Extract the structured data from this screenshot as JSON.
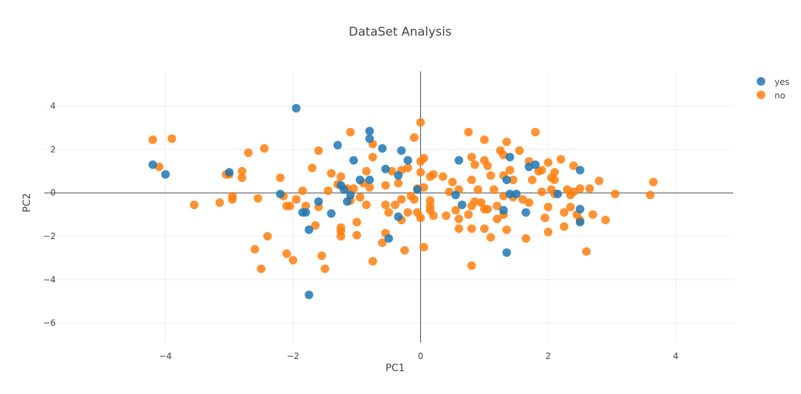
{
  "chart_data": {
    "type": "scatter",
    "title": "DataSet Analysis",
    "xlabel": "PC1",
    "ylabel": "PC2",
    "xlim": [
      -5.9,
      4.9
    ],
    "ylim": [
      -6.9,
      5.6
    ],
    "x_ticks": [
      -4,
      -2,
      0,
      2,
      4
    ],
    "y_ticks": [
      -6,
      -4,
      -2,
      0,
      2,
      4
    ],
    "grid": true,
    "zero_lines": true,
    "legend_position": "top-right",
    "series": [
      {
        "name": "yes",
        "color": "#1f77b4",
        "points": [
          [
            -4.2,
            1.3
          ],
          [
            -4.0,
            0.85
          ],
          [
            -3.0,
            0.95
          ],
          [
            -2.2,
            -0.05
          ],
          [
            -1.95,
            3.9
          ],
          [
            -1.8,
            -0.9
          ],
          [
            -1.75,
            -1.7
          ],
          [
            -1.75,
            -4.7
          ],
          [
            -1.6,
            -0.4
          ],
          [
            -1.4,
            -0.95
          ],
          [
            -1.3,
            2.2
          ],
          [
            -1.25,
            0.35
          ],
          [
            -1.2,
            0.15
          ],
          [
            -1.1,
            -0.1
          ],
          [
            -1.05,
            1.5
          ],
          [
            -0.95,
            0.6
          ],
          [
            -0.8,
            2.85
          ],
          [
            -0.8,
            2.5
          ],
          [
            -0.8,
            0.6
          ],
          [
            -0.6,
            2.05
          ],
          [
            -0.55,
            1.1
          ],
          [
            -0.5,
            -2.1
          ],
          [
            -0.35,
            0.8
          ],
          [
            -0.3,
            1.95
          ],
          [
            -0.35,
            -1.1
          ],
          [
            -0.2,
            1.5
          ],
          [
            -0.05,
            0.15
          ],
          [
            -1.15,
            -0.4
          ],
          [
            -1.85,
            -0.9
          ],
          [
            0.6,
            1.5
          ],
          [
            0.55,
            -0.1
          ],
          [
            0.65,
            -0.55
          ],
          [
            1.3,
            -0.8
          ],
          [
            1.35,
            0.6
          ],
          [
            1.4,
            1.65
          ],
          [
            1.4,
            -0.05
          ],
          [
            1.5,
            -0.05
          ],
          [
            1.35,
            -2.75
          ],
          [
            1.65,
            -0.9
          ],
          [
            1.7,
            1.2
          ],
          [
            1.8,
            1.3
          ],
          [
            2.15,
            -0.05
          ],
          [
            2.5,
            -0.75
          ],
          [
            2.5,
            -1.35
          ],
          [
            2.5,
            1.05
          ]
        ]
      },
      {
        "name": "no",
        "color": "#ff7f0e",
        "points": [
          [
            -4.2,
            2.45
          ],
          [
            -4.1,
            1.2
          ],
          [
            -3.9,
            2.5
          ],
          [
            -3.55,
            -0.55
          ],
          [
            -3.15,
            -0.45
          ],
          [
            -3.05,
            0.85
          ],
          [
            -3.0,
            0.85
          ],
          [
            -2.95,
            -0.15
          ],
          [
            -2.95,
            -0.3
          ],
          [
            -2.8,
            1.0
          ],
          [
            -2.8,
            0.7
          ],
          [
            -2.7,
            1.85
          ],
          [
            -2.6,
            -2.6
          ],
          [
            -2.55,
            -0.25
          ],
          [
            -2.45,
            2.05
          ],
          [
            -2.4,
            -2.0
          ],
          [
            -2.5,
            -3.5
          ],
          [
            -2.2,
            0.7
          ],
          [
            -2.15,
            -0.15
          ],
          [
            -2.1,
            -0.6
          ],
          [
            -2.1,
            -2.8
          ],
          [
            -2.05,
            -0.6
          ],
          [
            -2.0,
            -3.1
          ],
          [
            -1.95,
            -0.3
          ],
          [
            -1.85,
            0.1
          ],
          [
            -1.8,
            -0.6
          ],
          [
            -1.7,
            1.15
          ],
          [
            -1.65,
            -1.5
          ],
          [
            -1.6,
            1.95
          ],
          [
            -1.6,
            -0.65
          ],
          [
            -1.55,
            -2.9
          ],
          [
            -1.5,
            -3.5
          ],
          [
            -1.45,
            0.1
          ],
          [
            -1.4,
            0.9
          ],
          [
            -1.3,
            0.4
          ],
          [
            -1.25,
            -1.6
          ],
          [
            -1.25,
            -1.75
          ],
          [
            -1.25,
            -2.0
          ],
          [
            -1.25,
            0.75
          ],
          [
            -1.15,
            0.2
          ],
          [
            -1.1,
            -0.35
          ],
          [
            -1.1,
            2.8
          ],
          [
            -1.05,
            0.2
          ],
          [
            -1.0,
            -1.35
          ],
          [
            -1.0,
            -1.95
          ],
          [
            -0.95,
            -0.2
          ],
          [
            -0.9,
            0.45
          ],
          [
            -0.85,
            1.0
          ],
          [
            -0.85,
            -0.55
          ],
          [
            -0.8,
            0.25
          ],
          [
            -0.75,
            2.25
          ],
          [
            -0.75,
            1.65
          ],
          [
            -0.75,
            -3.15
          ],
          [
            -0.6,
            -2.3
          ],
          [
            -0.55,
            -1.85
          ],
          [
            -0.55,
            -0.55
          ],
          [
            -0.55,
            0.35
          ],
          [
            -0.5,
            -0.9
          ],
          [
            -0.45,
            1.0
          ],
          [
            -0.4,
            -0.55
          ],
          [
            -0.35,
            0.45
          ],
          [
            -0.3,
            1.05
          ],
          [
            -0.3,
            -0.3
          ],
          [
            -0.3,
            -1.25
          ],
          [
            -0.25,
            -2.65
          ],
          [
            -0.2,
            -0.9
          ],
          [
            -0.2,
            1.15
          ],
          [
            -0.15,
            -0.15
          ],
          [
            -0.1,
            2.55
          ],
          [
            -0.1,
            -0.3
          ],
          [
            -0.05,
            0.2
          ],
          [
            -0.05,
            -0.9
          ],
          [
            0.0,
            3.25
          ],
          [
            0.0,
            1.45
          ],
          [
            0.0,
            0.95
          ],
          [
            0.0,
            -1.15
          ],
          [
            0.05,
            0.25
          ],
          [
            0.05,
            1.6
          ],
          [
            0.05,
            -2.5
          ],
          [
            0.15,
            0.75
          ],
          [
            0.15,
            -0.35
          ],
          [
            0.15,
            -0.6
          ],
          [
            0.15,
            -0.8
          ],
          [
            0.2,
            -1.05
          ],
          [
            0.2,
            0.85
          ],
          [
            0.35,
            0.75
          ],
          [
            0.4,
            -1.05
          ],
          [
            0.45,
            0.05
          ],
          [
            0.5,
            0.5
          ],
          [
            0.55,
            -0.8
          ],
          [
            0.6,
            0.15
          ],
          [
            0.6,
            -1.2
          ],
          [
            0.6,
            -1.65
          ],
          [
            0.75,
            2.8
          ],
          [
            0.75,
            -1.0
          ],
          [
            0.8,
            0.6
          ],
          [
            0.8,
            1.65
          ],
          [
            0.8,
            -0.6
          ],
          [
            0.85,
            -0.4
          ],
          [
            0.8,
            -1.65
          ],
          [
            0.8,
            -3.35
          ],
          [
            0.85,
            1.3
          ],
          [
            0.9,
            0.15
          ],
          [
            0.95,
            -0.45
          ],
          [
            1.0,
            1.5
          ],
          [
            1.0,
            2.45
          ],
          [
            1.0,
            -0.75
          ],
          [
            1.0,
            -1.65
          ],
          [
            1.05,
            -0.75
          ],
          [
            1.05,
            1.25
          ],
          [
            1.1,
            -2.05
          ],
          [
            1.1,
            0.8
          ],
          [
            1.15,
            0.15
          ],
          [
            1.2,
            -0.6
          ],
          [
            1.2,
            -1.2
          ],
          [
            1.25,
            1.95
          ],
          [
            1.3,
            1.75
          ],
          [
            1.3,
            0.8
          ],
          [
            1.3,
            -0.15
          ],
          [
            1.3,
            -1.0
          ],
          [
            1.35,
            2.35
          ],
          [
            1.35,
            -1.7
          ],
          [
            1.4,
            1.05
          ],
          [
            1.45,
            0.6
          ],
          [
            1.45,
            -0.2
          ],
          [
            1.55,
            1.95
          ],
          [
            1.6,
            -0.3
          ],
          [
            1.65,
            -2.1
          ],
          [
            1.7,
            1.45
          ],
          [
            1.75,
            0.6
          ],
          [
            1.7,
            -0.45
          ],
          [
            1.8,
            2.8
          ],
          [
            1.85,
            1.0
          ],
          [
            1.9,
            1.05
          ],
          [
            1.9,
            0.05
          ],
          [
            1.95,
            -1.15
          ],
          [
            2.0,
            -0.65
          ],
          [
            2.0,
            -1.8
          ],
          [
            2.0,
            1.4
          ],
          [
            2.05,
            0.7
          ],
          [
            2.05,
            0.15
          ],
          [
            2.1,
            0.95
          ],
          [
            2.1,
            0.6
          ],
          [
            2.1,
            -0.05
          ],
          [
            2.2,
            1.55
          ],
          [
            2.25,
            -0.9
          ],
          [
            2.25,
            -1.55
          ],
          [
            2.3,
            0.15
          ],
          [
            2.35,
            -0.1
          ],
          [
            2.35,
            -0.65
          ],
          [
            2.4,
            1.25
          ],
          [
            2.4,
            0.05
          ],
          [
            2.45,
            -1.0
          ],
          [
            2.5,
            0.2
          ],
          [
            2.5,
            -1.25
          ],
          [
            2.6,
            -2.7
          ],
          [
            2.65,
            0.2
          ],
          [
            2.7,
            -1.0
          ],
          [
            2.8,
            0.55
          ],
          [
            2.9,
            -1.25
          ],
          [
            3.05,
            -0.05
          ],
          [
            3.6,
            -0.1
          ],
          [
            3.65,
            0.5
          ]
        ]
      }
    ]
  }
}
